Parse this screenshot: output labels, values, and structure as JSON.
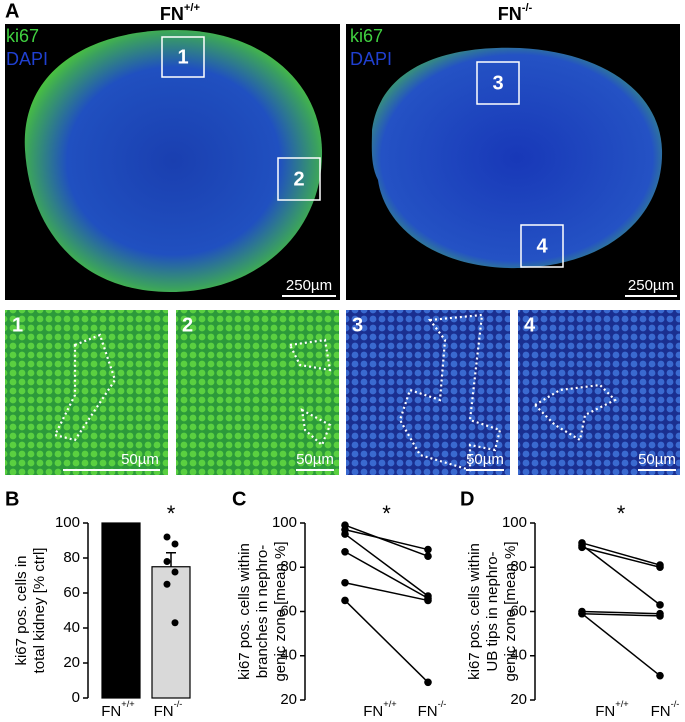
{
  "panel_a": {
    "label": "A",
    "genotypes": [
      {
        "label": "FN",
        "sup": "+/+"
      },
      {
        "label": "FN",
        "sup": "-/-"
      }
    ],
    "stain_1": "ki67",
    "stain_2": "DAPI",
    "scale_large": "250µm",
    "scale_small": "50µm",
    "regions": [
      "1",
      "2",
      "3",
      "4"
    ]
  },
  "chart_data": [
    {
      "type": "bar",
      "label": "B",
      "y_label": [
        "ki67 pos. cells in",
        "total kidney [% ctrl]"
      ],
      "categories": [
        {
          "label": "FN",
          "sup": "+/+"
        },
        {
          "label": "FN",
          "sup": "-/-"
        }
      ],
      "values": [
        100,
        75
      ],
      "errors": [
        null,
        8
      ],
      "colors": [
        "#000000",
        "#d9d9d9"
      ],
      "points": [
        [],
        [
          92,
          88,
          78,
          72,
          65,
          43
        ]
      ],
      "annotation": "*",
      "ylim": [
        0,
        100
      ],
      "yticks": [
        0,
        20,
        40,
        60,
        80,
        100
      ]
    },
    {
      "type": "paired",
      "label": "C",
      "y_label": [
        "ki67 pos. cells within",
        "branches in nephro-",
        "genic  zone [mean %]"
      ],
      "categories": [
        {
          "label": "FN",
          "sup": "+/+"
        },
        {
          "label": "FN",
          "sup": "-/-"
        }
      ],
      "series": [
        {
          "color": "#000000",
          "values": [
            99,
            85
          ]
        },
        {
          "color": "#000000",
          "values": [
            97,
            88
          ]
        },
        {
          "color": "#000000",
          "values": [
            95,
            67
          ]
        },
        {
          "color": "#000000",
          "values": [
            87,
            66
          ]
        },
        {
          "color": "#000000",
          "values": [
            73,
            65
          ]
        },
        {
          "color": "#000000",
          "values": [
            65,
            28
          ]
        }
      ],
      "annotation": "*",
      "ylim": [
        20,
        100
      ],
      "yticks": [
        20,
        40,
        60,
        80,
        100
      ]
    },
    {
      "type": "paired",
      "label": "D",
      "y_label": [
        "ki67 pos. cells within",
        "UB tips in nephro-",
        "genic  zone [mean %]"
      ],
      "categories": [
        {
          "label": "FN",
          "sup": "+/+"
        },
        {
          "label": "FN",
          "sup": "-/-"
        }
      ],
      "series": [
        {
          "color": "#000000",
          "values": [
            91,
            81
          ]
        },
        {
          "color": "#000000",
          "values": [
            90,
            63
          ]
        },
        {
          "color": "#000000",
          "values": [
            89,
            80
          ]
        },
        {
          "color": "#000000",
          "values": [
            60,
            59
          ]
        },
        {
          "color": "#000000",
          "values": [
            59,
            58
          ]
        },
        {
          "color": "#000000",
          "values": [
            59,
            31
          ]
        }
      ],
      "annotation": "*",
      "ylim": [
        20,
        100
      ],
      "yticks": [
        20,
        40,
        60,
        80,
        100
      ]
    }
  ]
}
